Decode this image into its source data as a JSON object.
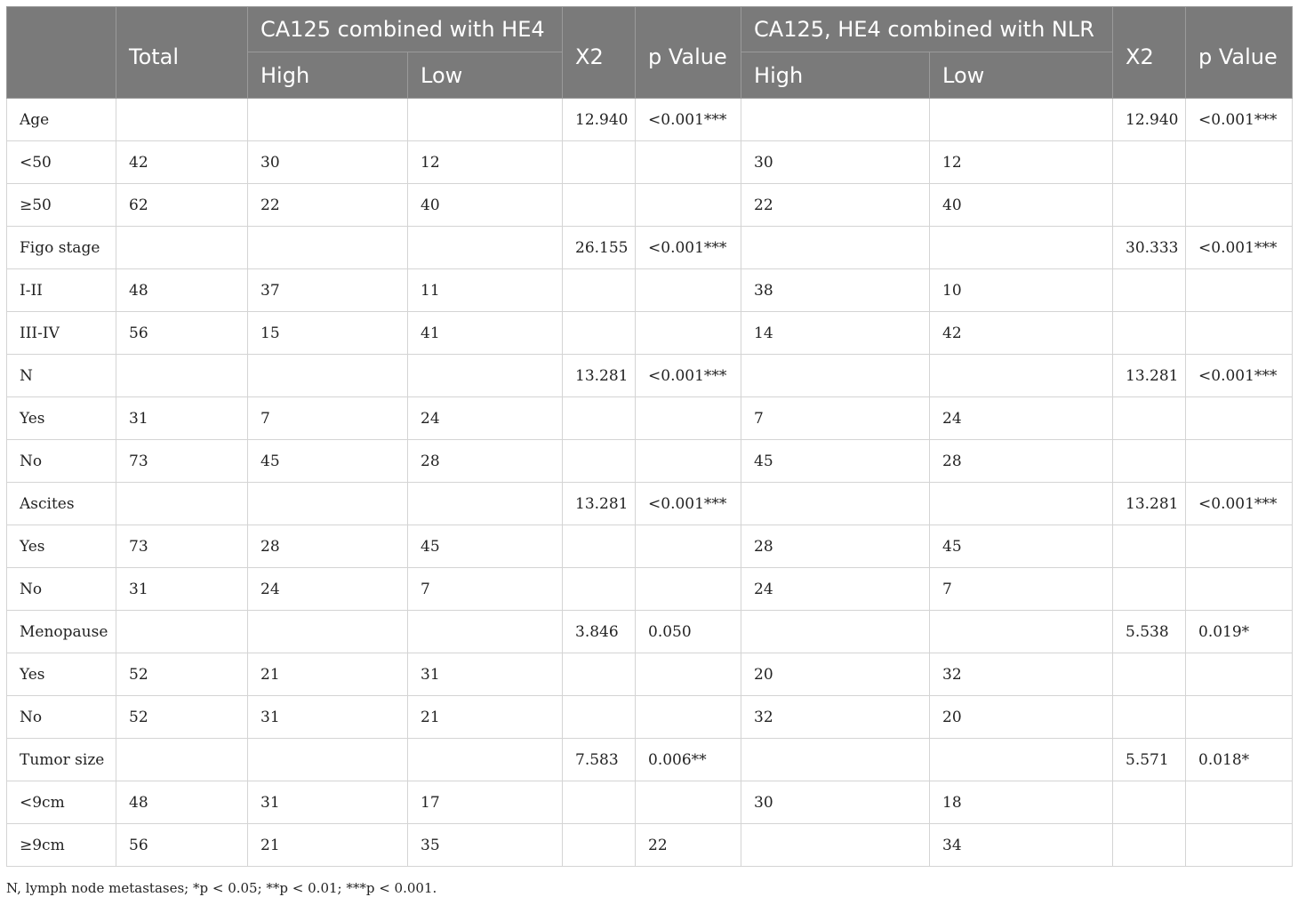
{
  "header": {
    "blank": "",
    "total": "Total",
    "group1": "CA125 combined with HE4",
    "x2_1": "X2",
    "p_1": "p Value",
    "group2": "CA125, HE4 combined with NLR",
    "x2_2": "X2",
    "p_2": "p Value",
    "high1": "High",
    "low1": "Low",
    "high2": "High",
    "low2": "Low"
  },
  "rows": [
    [
      "Age",
      "",
      "",
      "",
      "12.940",
      "<0.001***",
      "",
      "",
      "12.940",
      "<0.001***"
    ],
    [
      "<50",
      "42",
      "30",
      "12",
      "",
      "",
      "30",
      "12",
      "",
      ""
    ],
    [
      "≥50",
      "62",
      "22",
      "40",
      "",
      "",
      "22",
      "40",
      "",
      ""
    ],
    [
      "Figo stage",
      "",
      "",
      "",
      "26.155",
      "<0.001***",
      "",
      "",
      "30.333",
      "<0.001***"
    ],
    [
      "I-II",
      "48",
      "37",
      "11",
      "",
      "",
      "38",
      "10",
      "",
      ""
    ],
    [
      "III-IV",
      "56",
      "15",
      "41",
      "",
      "",
      "14",
      "42",
      "",
      ""
    ],
    [
      "N",
      "",
      "",
      "",
      "13.281",
      "<0.001***",
      "",
      "",
      "13.281",
      "<0.001***"
    ],
    [
      "Yes",
      "31",
      "7",
      "24",
      "",
      "",
      "7",
      "24",
      "",
      ""
    ],
    [
      "No",
      "73",
      "45",
      "28",
      "",
      "",
      "45",
      "28",
      "",
      ""
    ],
    [
      "Ascites",
      "",
      "",
      "",
      "13.281",
      "<0.001***",
      "",
      "",
      "13.281",
      "<0.001***"
    ],
    [
      "Yes",
      "73",
      "28",
      "45",
      "",
      "",
      "28",
      "45",
      "",
      ""
    ],
    [
      "No",
      "31",
      "24",
      "7",
      "",
      "",
      "24",
      "7",
      "",
      ""
    ],
    [
      "Menopause",
      "",
      "",
      "",
      "3.846",
      "0.050",
      "",
      "",
      "5.538",
      "0.019*"
    ],
    [
      "Yes",
      "52",
      "21",
      "31",
      "",
      "",
      "20",
      "32",
      "",
      ""
    ],
    [
      "No",
      "52",
      "31",
      "21",
      "",
      "",
      "32",
      "20",
      "",
      ""
    ],
    [
      "Tumor size",
      "",
      "",
      "",
      "7.583",
      "0.006**",
      "",
      "",
      "5.571",
      "0.018*"
    ],
    [
      "<9cm",
      "48",
      "31",
      "17",
      "",
      "",
      "30",
      "18",
      "",
      ""
    ],
    [
      "≥9cm",
      "56",
      "21",
      "35",
      "",
      "22",
      "",
      "34",
      "",
      ""
    ]
  ],
  "footnote": "N, lymph node metastases; *p < 0.05; **p < 0.01; ***p < 0.001."
}
